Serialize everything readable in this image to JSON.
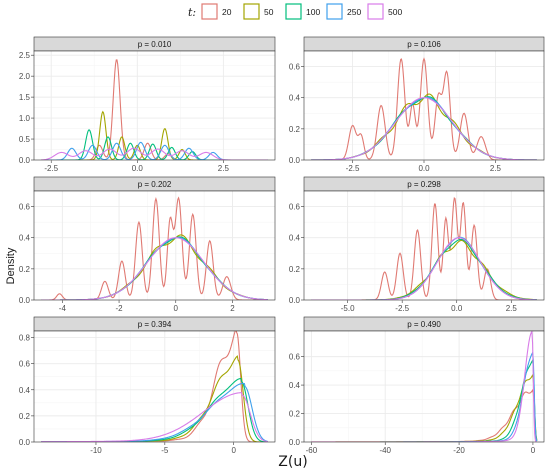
{
  "colors": {
    "panel_bg": "#ffffff",
    "strip_bg": "#d9d9d9",
    "grid_major": "#ebebeb",
    "grid_minor": "#f5f5f5",
    "border": "#333333",
    "series": {
      "20": "#e07a73",
      "50": "#a3a500",
      "100": "#00bf7d",
      "250": "#3fa0ec",
      "500": "#d87ce8"
    }
  },
  "legend": {
    "title": "t:",
    "items": [
      "20",
      "50",
      "100",
      "250",
      "500"
    ]
  },
  "y_title": "Density",
  "x_title": "Z(u)",
  "chart_data": [
    {
      "type": "line",
      "title": "p = 0.010",
      "xlim": [
        -3,
        4
      ],
      "ylim": [
        0,
        2.6
      ],
      "x_ticks": [
        -2.5,
        0.0,
        2.5
      ],
      "x_tick_labels": [
        "-2.5",
        "0.0",
        "2.5"
      ],
      "y_ticks": [
        0.0,
        0.5,
        1.0,
        1.5,
        2.0,
        2.5
      ],
      "y_tick_labels": [
        "0.0",
        "0.5",
        "1.0",
        "1.5",
        "2.0",
        "2.5"
      ],
      "series": [
        {
          "t": "20",
          "kind": "peaks",
          "peaks": [
            [
              -0.6,
              2.4,
              0.1
            ],
            [
              -1.1,
              0.35,
              0.1
            ],
            [
              0.3,
              0.4,
              0.1
            ],
            [
              0.9,
              0.15,
              0.1
            ]
          ]
        },
        {
          "t": "50",
          "kind": "peaks",
          "peaks": [
            [
              -1.0,
              1.15,
              0.09
            ],
            [
              -0.45,
              0.55,
              0.09
            ],
            [
              0.0,
              0.35,
              0.09
            ],
            [
              0.8,
              0.75,
              0.09
            ],
            [
              1.3,
              0.25,
              0.09
            ]
          ]
        },
        {
          "t": "100",
          "kind": "peaks",
          "peaks": [
            [
              -1.4,
              0.72,
              0.1
            ],
            [
              -0.85,
              0.55,
              0.1
            ],
            [
              -0.2,
              0.4,
              0.1
            ],
            [
              0.45,
              0.38,
              0.1
            ],
            [
              1.0,
              0.3,
              0.1
            ],
            [
              1.6,
              0.2,
              0.1
            ]
          ]
        },
        {
          "t": "250",
          "kind": "peaks",
          "peaks": [
            [
              -1.9,
              0.28,
              0.12
            ],
            [
              -1.3,
              0.35,
              0.12
            ],
            [
              -0.6,
              0.4,
              0.12
            ],
            [
              0.1,
              0.42,
              0.12
            ],
            [
              0.8,
              0.35,
              0.12
            ],
            [
              1.5,
              0.28,
              0.12
            ],
            [
              2.2,
              0.18,
              0.12
            ]
          ]
        },
        {
          "t": "500",
          "kind": "peaks",
          "peaks": [
            [
              -2.2,
              0.18,
              0.2
            ],
            [
              -1.5,
              0.22,
              0.2
            ],
            [
              -0.8,
              0.26,
              0.2
            ],
            [
              -0.1,
              0.28,
              0.2
            ],
            [
              0.6,
              0.26,
              0.2
            ],
            [
              1.3,
              0.22,
              0.2
            ],
            [
              2.0,
              0.18,
              0.2
            ]
          ]
        }
      ]
    },
    {
      "type": "line",
      "title": "p = 0.106",
      "xlim": [
        -4.2,
        4.2
      ],
      "ylim": [
        0,
        0.7
      ],
      "x_ticks": [
        -2.5,
        0.0,
        2.5
      ],
      "x_tick_labels": [
        "-2.5",
        "0.0",
        "2.5"
      ],
      "y_ticks": [
        0.0,
        0.2,
        0.4,
        0.6
      ],
      "y_tick_labels": [
        "0.0",
        "0.2",
        "0.4",
        "0.6"
      ],
      "series": [
        {
          "t": "20",
          "kind": "peaks",
          "peaks": [
            [
              -2.5,
              0.22,
              0.13
            ],
            [
              -2.2,
              0.15,
              0.1
            ],
            [
              -1.5,
              0.35,
              0.14
            ],
            [
              -0.8,
              0.65,
              0.13
            ],
            [
              -0.4,
              0.35,
              0.1
            ],
            [
              0.0,
              0.65,
              0.13
            ],
            [
              0.5,
              0.4,
              0.12
            ],
            [
              0.8,
              0.55,
              0.12
            ],
            [
              1.4,
              0.3,
              0.14
            ],
            [
              2.0,
              0.15,
              0.15
            ]
          ]
        },
        {
          "t": "50",
          "kind": "normal",
          "mu": 0.0,
          "sigma": 1.0,
          "wiggle": 0.08,
          "freq": 7.0
        },
        {
          "t": "100",
          "kind": "normal",
          "mu": 0.0,
          "sigma": 1.0,
          "wiggle": 0.04,
          "freq": 5.0
        },
        {
          "t": "250",
          "kind": "normal",
          "mu": 0.0,
          "sigma": 1.0,
          "wiggle": 0.02,
          "freq": 4.0
        },
        {
          "t": "500",
          "kind": "normal",
          "mu": 0.0,
          "sigma": 1.0,
          "wiggle": 0.0,
          "freq": 1.0
        }
      ]
    },
    {
      "type": "line",
      "title": "p = 0.202",
      "xlim": [
        -5.0,
        3.5
      ],
      "ylim": [
        0,
        0.7
      ],
      "x_ticks": [
        -4,
        -2,
        0,
        2
      ],
      "x_tick_labels": [
        "-4",
        "-2",
        "0",
        "2"
      ],
      "y_ticks": [
        0.0,
        0.2,
        0.4,
        0.6
      ],
      "y_tick_labels": [
        "0.0",
        "0.2",
        "0.4",
        "0.6"
      ],
      "series": [
        {
          "t": "20",
          "kind": "peaks",
          "peaks": [
            [
              -4.1,
              0.04,
              0.1
            ],
            [
              -2.5,
              0.12,
              0.12
            ],
            [
              -1.9,
              0.25,
              0.12
            ],
            [
              -1.3,
              0.5,
              0.12
            ],
            [
              -0.7,
              0.65,
              0.12
            ],
            [
              -0.2,
              0.5,
              0.1
            ],
            [
              0.1,
              0.65,
              0.12
            ],
            [
              0.6,
              0.55,
              0.12
            ],
            [
              1.2,
              0.38,
              0.12
            ],
            [
              1.8,
              0.15,
              0.14
            ]
          ]
        },
        {
          "t": "50",
          "kind": "normal",
          "mu": 0.0,
          "sigma": 1.0,
          "wiggle": 0.07,
          "freq": 6.0
        },
        {
          "t": "100",
          "kind": "normal",
          "mu": 0.0,
          "sigma": 1.0,
          "wiggle": 0.035,
          "freq": 5.0
        },
        {
          "t": "250",
          "kind": "normal",
          "mu": 0.0,
          "sigma": 1.0,
          "wiggle": 0.015,
          "freq": 4.0
        },
        {
          "t": "500",
          "kind": "normal",
          "mu": 0.0,
          "sigma": 1.0,
          "wiggle": 0.0,
          "freq": 1.0
        }
      ]
    },
    {
      "type": "line",
      "title": "p = 0.298",
      "xlim": [
        -7.0,
        4.0
      ],
      "ylim": [
        0,
        0.7
      ],
      "x_ticks": [
        -5.0,
        -2.5,
        0.0,
        2.5
      ],
      "x_tick_labels": [
        "-5.0",
        "-2.5",
        "0.0",
        "2.5"
      ],
      "y_ticks": [
        0.0,
        0.2,
        0.4,
        0.6
      ],
      "y_tick_labels": [
        "0.0",
        "0.2",
        "0.4",
        "0.6"
      ],
      "series": [
        {
          "t": "20",
          "kind": "peaks",
          "peaks": [
            [
              -3.3,
              0.18,
              0.15
            ],
            [
              -2.6,
              0.3,
              0.15
            ],
            [
              -1.8,
              0.45,
              0.15
            ],
            [
              -1.0,
              0.62,
              0.14
            ],
            [
              -0.5,
              0.52,
              0.12
            ],
            [
              -0.1,
              0.65,
              0.13
            ],
            [
              0.3,
              0.62,
              0.13
            ],
            [
              0.8,
              0.48,
              0.14
            ],
            [
              1.4,
              0.2,
              0.15
            ]
          ]
        },
        {
          "t": "50",
          "kind": "normal",
          "mu": 0.1,
          "sigma": 1.1,
          "wiggle": 0.06,
          "freq": 6.0
        },
        {
          "t": "100",
          "kind": "normal",
          "mu": 0.1,
          "sigma": 1.05,
          "wiggle": 0.03,
          "freq": 5.0
        },
        {
          "t": "250",
          "kind": "normal",
          "mu": 0.1,
          "sigma": 1.0,
          "wiggle": 0.015,
          "freq": 4.0
        },
        {
          "t": "500",
          "kind": "normal",
          "mu": 0.1,
          "sigma": 1.0,
          "wiggle": 0.0,
          "freq": 1.0
        }
      ]
    },
    {
      "type": "line",
      "title": "p = 0.394",
      "xlim": [
        -14.5,
        3.0
      ],
      "ylim": [
        0,
        0.85
      ],
      "x_ticks": [
        -10,
        -5,
        0
      ],
      "x_tick_labels": [
        "-10",
        "-5",
        "0"
      ],
      "y_ticks": [
        0.0,
        0.2,
        0.4,
        0.6,
        0.8
      ],
      "y_tick_labels": [
        "0.0",
        "0.2",
        "0.4",
        "0.6",
        "0.8"
      ],
      "series": [
        {
          "t": "20",
          "kind": "skew",
          "mode": 0.2,
          "peak": 0.78,
          "left": 1.4,
          "right": 0.3,
          "wiggle": 0.1,
          "freq": 4.0
        },
        {
          "t": "50",
          "kind": "skew",
          "mode": 0.3,
          "peak": 0.6,
          "left": 1.7,
          "right": 0.4,
          "wiggle": 0.05,
          "freq": 4.0
        },
        {
          "t": "100",
          "kind": "skew",
          "mode": 0.55,
          "peak": 0.45,
          "left": 2.1,
          "right": 0.5,
          "wiggle": 0.03,
          "freq": 3.0
        },
        {
          "t": "250",
          "kind": "skew",
          "mode": 0.8,
          "peak": 0.42,
          "left": 2.4,
          "right": 0.55,
          "wiggle": 0.02,
          "freq": 3.0
        },
        {
          "t": "500",
          "kind": "skew",
          "mode": 0.6,
          "peak": 0.36,
          "left": 2.8,
          "right": 0.6,
          "wiggle": 0.0,
          "freq": 1.0
        }
      ]
    },
    {
      "type": "line",
      "title": "p = 0.490",
      "xlim": [
        -62,
        3
      ],
      "ylim": [
        0,
        0.78
      ],
      "x_ticks": [
        -60,
        -40,
        -20,
        0
      ],
      "x_tick_labels": [
        "-60",
        "-40",
        "-20",
        "0"
      ],
      "y_ticks": [
        0.0,
        0.2,
        0.4,
        0.6
      ],
      "y_tick_labels": [
        "0.0",
        "0.2",
        "0.4",
        "0.6"
      ],
      "series": [
        {
          "t": "20",
          "kind": "skew",
          "mode": 0.0,
          "peak": 0.35,
          "left": 5.0,
          "right": 0.4,
          "wiggle": 0.05,
          "freq": 2.0
        },
        {
          "t": "50",
          "kind": "skew",
          "mode": 0.0,
          "peak": 0.45,
          "left": 4.0,
          "right": 0.4,
          "wiggle": 0.04,
          "freq": 2.0
        },
        {
          "t": "100",
          "kind": "skew",
          "mode": 0.0,
          "peak": 0.55,
          "left": 3.0,
          "right": 0.35,
          "wiggle": 0.03,
          "freq": 2.0
        },
        {
          "t": "250",
          "kind": "skew",
          "mode": 0.0,
          "peak": 0.6,
          "left": 2.5,
          "right": 0.35,
          "wiggle": 0.02,
          "freq": 2.0
        },
        {
          "t": "500",
          "kind": "skew",
          "mode": -0.2,
          "peak": 0.74,
          "left": 2.0,
          "right": 0.3,
          "wiggle": 0.0,
          "freq": 1.0
        }
      ]
    }
  ]
}
